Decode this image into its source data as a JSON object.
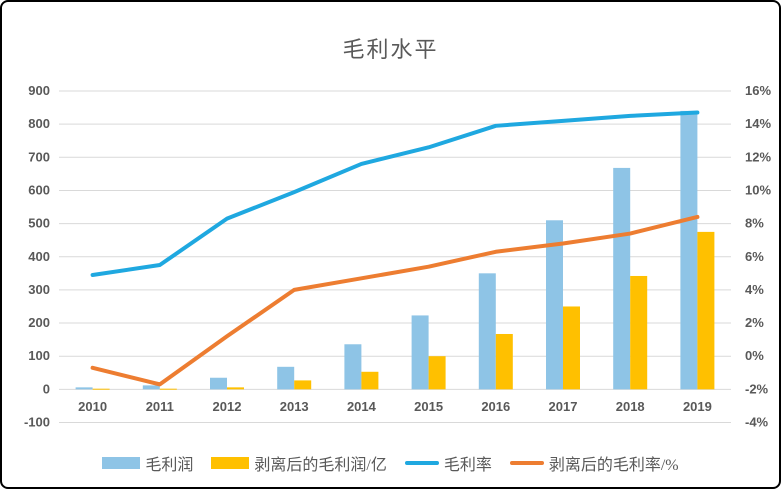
{
  "window": {
    "background": "#FFFFFF",
    "border_color": "#000000"
  },
  "chart_data": {
    "type": "bar+line combo",
    "title": "毛利水平",
    "categories": [
      "2010",
      "2011",
      "2012",
      "2013",
      "2014",
      "2015",
      "2016",
      "2017",
      "2018",
      "2019"
    ],
    "bar_series": [
      {
        "name": "毛利润",
        "color": "#8EC4E6",
        "axis": "left",
        "values": [
          6,
          12,
          35,
          68,
          136,
          223,
          350,
          510,
          668,
          840
        ]
      },
      {
        "name": "剥离后的毛利润/亿",
        "color": "#FFC000",
        "axis": "left",
        "values": [
          2,
          2,
          6,
          27,
          53,
          100,
          167,
          250,
          342,
          475
        ]
      }
    ],
    "line_series": [
      {
        "name": "毛利率",
        "color": "#1FA8E0",
        "axis": "right",
        "unit": "%",
        "values": [
          4.9,
          5.5,
          8.3,
          9.9,
          11.6,
          12.6,
          13.9,
          14.2,
          14.5,
          14.7
        ]
      },
      {
        "name": "剥离后的毛利率/%",
        "color": "#ED7D31",
        "axis": "right",
        "unit": "%",
        "values": [
          -0.7,
          -1.7,
          1.2,
          4.0,
          4.7,
          5.4,
          6.3,
          6.8,
          7.4,
          8.4
        ]
      }
    ],
    "left_axis": {
      "min": -100,
      "max": 900,
      "step": 100,
      "tick_labels": [
        "-100",
        "0",
        "100",
        "200",
        "300",
        "400",
        "500",
        "600",
        "700",
        "800",
        "900"
      ]
    },
    "right_axis": {
      "min": -4,
      "max": 16,
      "step": 2,
      "tick_labels": [
        "-4%",
        "-2%",
        "0%",
        "2%",
        "4%",
        "6%",
        "8%",
        "10%",
        "12%",
        "14%",
        "16%"
      ],
      "mapping_note": "right -4% aligns with left -100; right 16% aligns with left 900 (2% per 100)"
    },
    "grid": true,
    "gridline_color": "#D9D9D9",
    "text_color": "#595959",
    "legend_position": "bottom"
  }
}
